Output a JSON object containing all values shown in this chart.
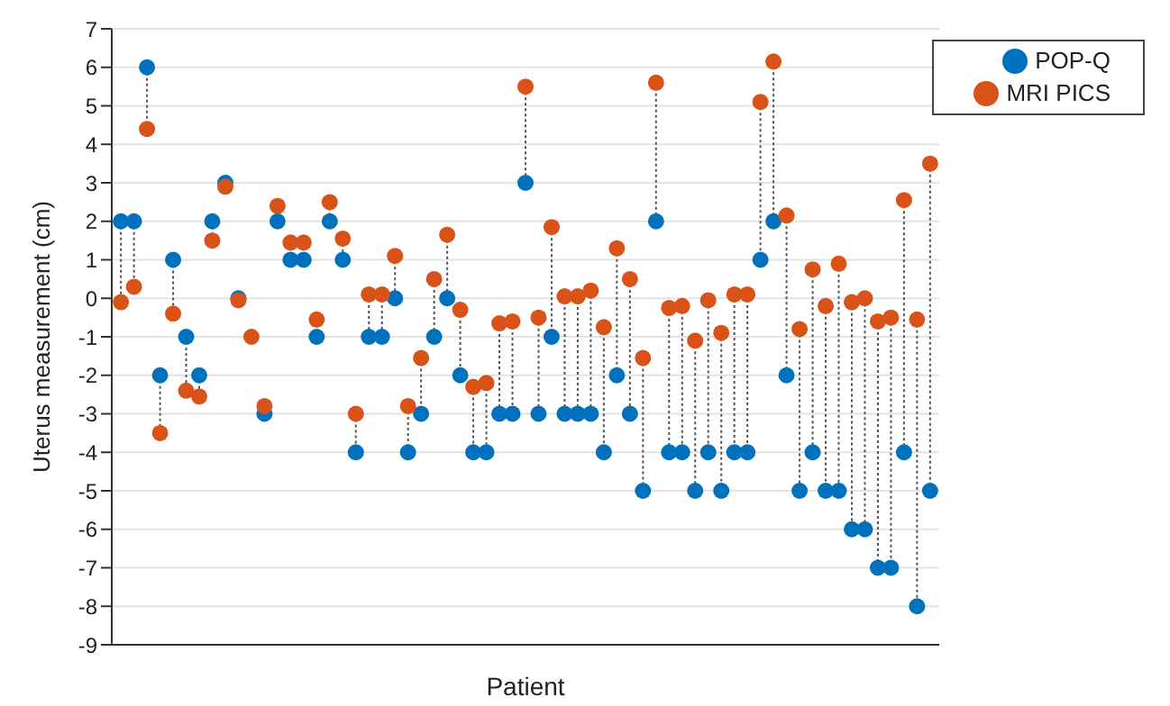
{
  "chart_data": {
    "type": "scatter",
    "xlabel": "Patient",
    "ylabel": "Uterus measurement (cm)",
    "categories": [
      null,
      null,
      null,
      null,
      null,
      null,
      null,
      null,
      null,
      null,
      null,
      null,
      null,
      null,
      null,
      null,
      null,
      null,
      null,
      null,
      null,
      null,
      null,
      null,
      null,
      null,
      null,
      null,
      null,
      null,
      null,
      null,
      null,
      null,
      null,
      null,
      null,
      null,
      null,
      null,
      null,
      null,
      null,
      null,
      null,
      null,
      null,
      null,
      null,
      null,
      null,
      null,
      null,
      null,
      null,
      null,
      null,
      null,
      null,
      null,
      null,
      null,
      null
    ],
    "series": [
      {
        "name": "POP-Q",
        "color": "#0072bd",
        "values": [
          2,
          2,
          6,
          -2,
          1,
          -1,
          -2,
          2,
          3,
          0,
          null,
          -3,
          2,
          1,
          1,
          -1,
          2,
          1,
          -4,
          -1,
          -1,
          0,
          -4,
          -3,
          -1,
          0,
          -2,
          -4,
          -4,
          -3,
          -3,
          3,
          -3,
          -1,
          -3,
          -3,
          -3,
          -4,
          -2,
          -3,
          -5,
          2,
          -4,
          -4,
          -5,
          -4,
          -5,
          -4,
          -4,
          1,
          2,
          -2,
          -5,
          -4,
          -5,
          -5,
          -6,
          -6,
          -7,
          -7,
          -4,
          -8,
          -5
        ]
      },
      {
        "name": "MRI PICS",
        "color": "#d95319",
        "values": [
          -0.1,
          0.3,
          4.4,
          -3.5,
          -0.4,
          -2.4,
          -2.55,
          1.5,
          2.9,
          -0.05,
          -1,
          -2.8,
          2.4,
          1.45,
          1.45,
          -0.55,
          2.5,
          1.55,
          -3,
          0.1,
          0.1,
          1.1,
          -2.8,
          -1.55,
          0.5,
          1.65,
          -0.3,
          -2.3,
          -2.2,
          -0.65,
          -0.6,
          5.5,
          -0.5,
          1.85,
          0.05,
          0.05,
          0.2,
          -0.75,
          1.3,
          0.5,
          -1.55,
          5.6,
          -0.25,
          -0.2,
          -1.1,
          -0.05,
          -0.9,
          0.1,
          0.1,
          5.1,
          6.15,
          2.15,
          -0.8,
          0.75,
          -0.2,
          0.9,
          -0.1,
          0,
          -0.6,
          -0.5,
          2.55,
          -0.55,
          3.5
        ]
      }
    ],
    "ylim": [
      -9,
      7
    ],
    "yticks": [
      -9,
      -8,
      -7,
      -6,
      -5,
      -4,
      -3,
      -2,
      -1,
      0,
      1,
      2,
      3,
      4,
      5,
      6,
      7
    ],
    "grid": "y",
    "legend": "top right",
    "marker": "circle"
  }
}
